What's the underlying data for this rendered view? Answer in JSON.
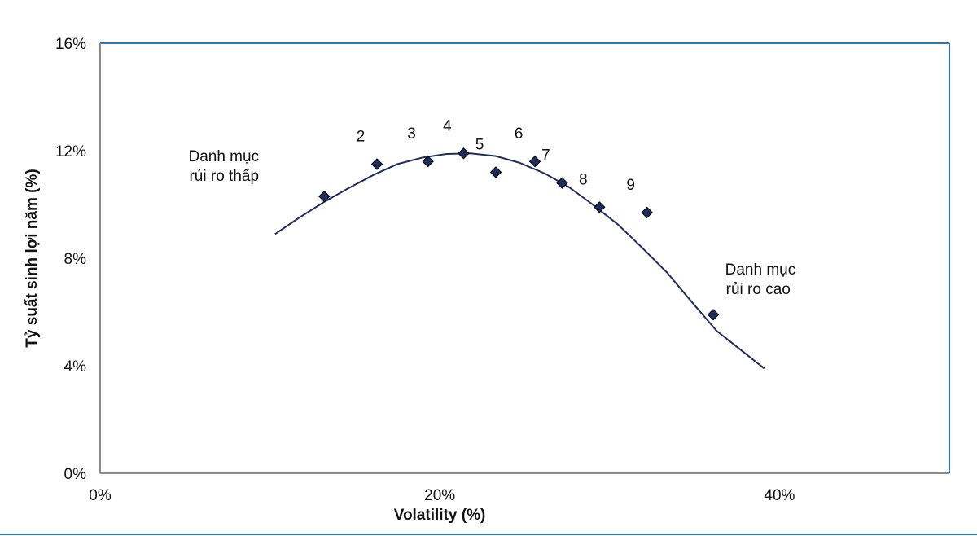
{
  "chart_data": {
    "type": "scatter",
    "title": "",
    "xlabel": "Volatility  (%)",
    "ylabel": "Tỷ suất sinh lợi năm (%)",
    "xlim": [
      0,
      50
    ],
    "ylim": [
      0,
      16
    ],
    "x_ticks": [
      {
        "value": 0,
        "label": "0%"
      },
      {
        "value": 20,
        "label": "20%"
      },
      {
        "value": 40,
        "label": "40%"
      }
    ],
    "y_ticks": [
      {
        "value": 0,
        "label": "0%"
      },
      {
        "value": 4,
        "label": "4%"
      },
      {
        "value": 8,
        "label": "8%"
      },
      {
        "value": 12,
        "label": "12%"
      },
      {
        "value": 16,
        "label": "16%"
      }
    ],
    "grid": false,
    "colors": {
      "marker": "#1f2d5c",
      "curve": "#1f2d5c",
      "frame_top_right": "#2e75b6",
      "frame_axes": "#8c8c8c",
      "bottom_rule": "#2e75b6"
    },
    "marker": "diamond",
    "points": [
      {
        "x": 13.2,
        "y": 10.3,
        "label": ""
      },
      {
        "x": 16.3,
        "y": 11.5,
        "label": "2"
      },
      {
        "x": 19.3,
        "y": 11.6,
        "label": "3"
      },
      {
        "x": 21.4,
        "y": 11.9,
        "label": "4"
      },
      {
        "x": 23.3,
        "y": 11.2,
        "label": "5"
      },
      {
        "x": 25.6,
        "y": 11.6,
        "label": "6"
      },
      {
        "x": 27.2,
        "y": 10.8,
        "label": "7"
      },
      {
        "x": 29.4,
        "y": 9.9,
        "label": "8"
      },
      {
        "x": 32.2,
        "y": 9.7,
        "label": "9"
      },
      {
        "x": 36.1,
        "y": 5.9,
        "label": ""
      }
    ],
    "trendline": [
      {
        "x": 10.3,
        "y": 8.9
      },
      {
        "x": 11.7,
        "y": 9.5
      },
      {
        "x": 13.2,
        "y": 10.1
      },
      {
        "x": 14.6,
        "y": 10.6
      },
      {
        "x": 16.1,
        "y": 11.1
      },
      {
        "x": 17.5,
        "y": 11.5
      },
      {
        "x": 19.0,
        "y": 11.75
      },
      {
        "x": 20.4,
        "y": 11.88
      },
      {
        "x": 21.8,
        "y": 11.9
      },
      {
        "x": 23.3,
        "y": 11.8
      },
      {
        "x": 24.7,
        "y": 11.55
      },
      {
        "x": 26.2,
        "y": 11.15
      },
      {
        "x": 27.6,
        "y": 10.65
      },
      {
        "x": 29.0,
        "y": 10.0
      },
      {
        "x": 30.5,
        "y": 9.25
      },
      {
        "x": 31.9,
        "y": 8.4
      },
      {
        "x": 33.4,
        "y": 7.45
      },
      {
        "x": 34.8,
        "y": 6.4
      },
      {
        "x": 36.3,
        "y": 5.3
      },
      {
        "x": 37.7,
        "y": 4.6
      },
      {
        "x": 39.1,
        "y": 3.9
      }
    ],
    "annotations": [
      {
        "lines": [
          "Danh mục",
          "rủi ro thấp"
        ],
        "x": 5.2,
        "y": 11.6
      },
      {
        "lines": [
          "Danh mục",
          "rủi ro cao"
        ],
        "x": 36.8,
        "y": 7.4
      }
    ]
  }
}
